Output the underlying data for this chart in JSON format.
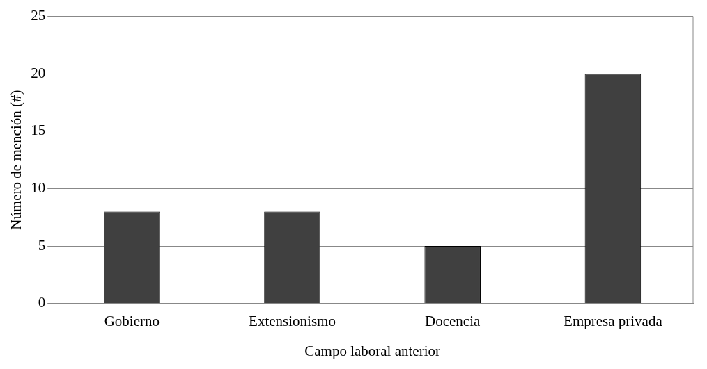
{
  "chart_data": {
    "type": "bar",
    "xlabel": "Campo laboral anterior",
    "ylabel": "Número de mención (#)",
    "categories": [
      "Gobierno",
      "Extensionismo",
      "Docencia",
      "Empresa privada"
    ],
    "values": [
      8,
      8,
      5,
      20
    ],
    "color": "#404040",
    "ylim": [
      0,
      25
    ],
    "yticks": [
      0,
      5,
      10,
      15,
      20,
      25
    ],
    "grid": "y",
    "legend": false
  }
}
